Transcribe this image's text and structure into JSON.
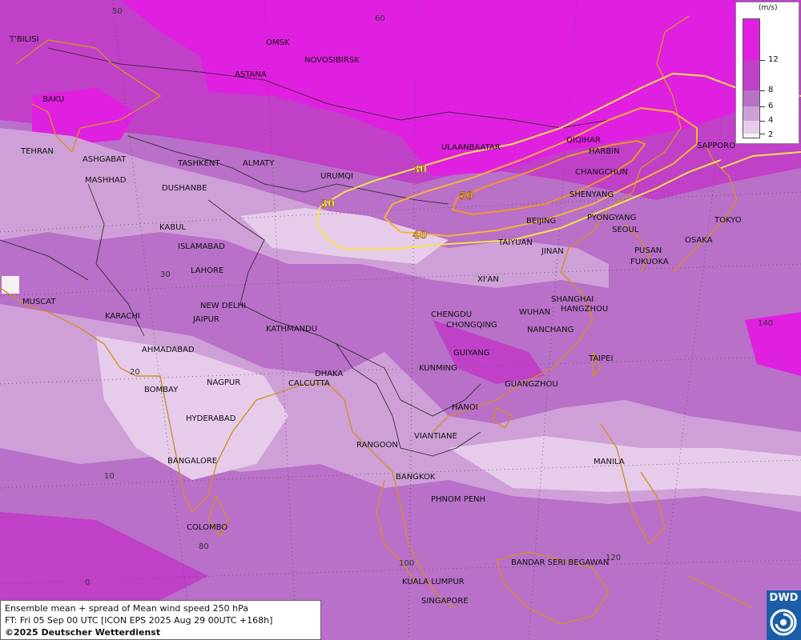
{
  "cities": [
    {
      "name": "OMSK"
    },
    {
      "name": "NOVOSIBIRSK"
    },
    {
      "name": "ASTANA"
    },
    {
      "name": "T'BILISI"
    },
    {
      "name": "BAKU"
    },
    {
      "name": "TEHRAN"
    },
    {
      "name": "ASHGABAT"
    },
    {
      "name": "MASHHAD"
    },
    {
      "name": "TASHKENT"
    },
    {
      "name": "ALMATY"
    },
    {
      "name": "DUSHANBE"
    },
    {
      "name": "URUMQI"
    },
    {
      "name": "ULAANBAATAR"
    },
    {
      "name": "QIQIHAR"
    },
    {
      "name": "HARBIN"
    },
    {
      "name": "CHANGCHUN"
    },
    {
      "name": "SHENYANG"
    },
    {
      "name": "SAPPORO"
    },
    {
      "name": "BEIJING"
    },
    {
      "name": "PYONGYANG"
    },
    {
      "name": "SEOUL"
    },
    {
      "name": "TOKYO"
    },
    {
      "name": "TAIYUAN"
    },
    {
      "name": "JINAN"
    },
    {
      "name": "OSAKA"
    },
    {
      "name": "PUSAN"
    },
    {
      "name": "FUKUOKA"
    },
    {
      "name": "KABUL"
    },
    {
      "name": "ISLAMABAD"
    },
    {
      "name": "LAHORE"
    },
    {
      "name": "MUSCAT"
    },
    {
      "name": "NEW DELHI"
    },
    {
      "name": "KARACHI"
    },
    {
      "name": "JAIPUR"
    },
    {
      "name": "XI'AN"
    },
    {
      "name": "SHANGHAI"
    },
    {
      "name": "HANGZHOU"
    },
    {
      "name": "CHENGDU"
    },
    {
      "name": "CHONGQING"
    },
    {
      "name": "WUHAN"
    },
    {
      "name": "KATHMANDU"
    },
    {
      "name": "NANCHANG"
    },
    {
      "name": "AHMADABAD"
    },
    {
      "name": "GUIYANG"
    },
    {
      "name": "TAIPEI"
    },
    {
      "name": "KUNMING"
    },
    {
      "name": "DHAKA"
    },
    {
      "name": "BOMBAY"
    },
    {
      "name": "NAGPUR"
    },
    {
      "name": "CALCUTTA"
    },
    {
      "name": "GUANGZHOU"
    },
    {
      "name": "HANOI"
    },
    {
      "name": "HYDERABAD"
    },
    {
      "name": "RANGOON"
    },
    {
      "name": "VIANTIANE"
    },
    {
      "name": "BANGALORE"
    },
    {
      "name": "MANILA"
    },
    {
      "name": "BANGKOK"
    },
    {
      "name": "PHNOM PENH"
    },
    {
      "name": "COLOMBO"
    },
    {
      "name": "BANDAR SERI BEGAWAN"
    },
    {
      "name": "KUALA LUMPUR"
    },
    {
      "name": "SINGAPORE"
    }
  ],
  "grid_labels": [
    "50",
    "60",
    "30",
    "20",
    "10",
    "80",
    "0",
    "100",
    "140",
    "120"
  ],
  "contours": [
    {
      "level": 30,
      "color": "#f5e24a",
      "labels": [
        "30",
        "30"
      ]
    },
    {
      "level": 40,
      "color": "#f5b23a",
      "labels": [
        "40"
      ]
    },
    {
      "level": 50,
      "color": "#f0952c",
      "labels": [
        "50"
      ]
    }
  ],
  "legend": {
    "unit": "(m/s)",
    "levels": [
      {
        "value": "12",
        "color": "#e020e0"
      },
      {
        "value": "8",
        "color": "#c040c8"
      },
      {
        "value": "6",
        "color": "#b870c8"
      },
      {
        "value": "4",
        "color": "#cfa0d8"
      },
      {
        "value": "2",
        "color": "#e6ccea"
      }
    ]
  },
  "colors": {
    "spread_lt_2": "#f2f2f2",
    "spread_2_4": "#e6ccea",
    "spread_4_6": "#cfa0d8",
    "spread_6_8": "#b870c8",
    "spread_8_12": "#c040c8",
    "spread_gt_12": "#e020e0",
    "coastline": "#d0902c"
  },
  "info": {
    "line1": "Ensemble mean + spread of Mean wind speed 250 hPa",
    "line2": "FT: Fri 05 Sep 00 UTC [ICON EPS 2025 Aug 29 00UTC +168h]",
    "line3": "©2025 Deutscher Wetterdienst"
  },
  "logo": {
    "text": "DWD"
  }
}
